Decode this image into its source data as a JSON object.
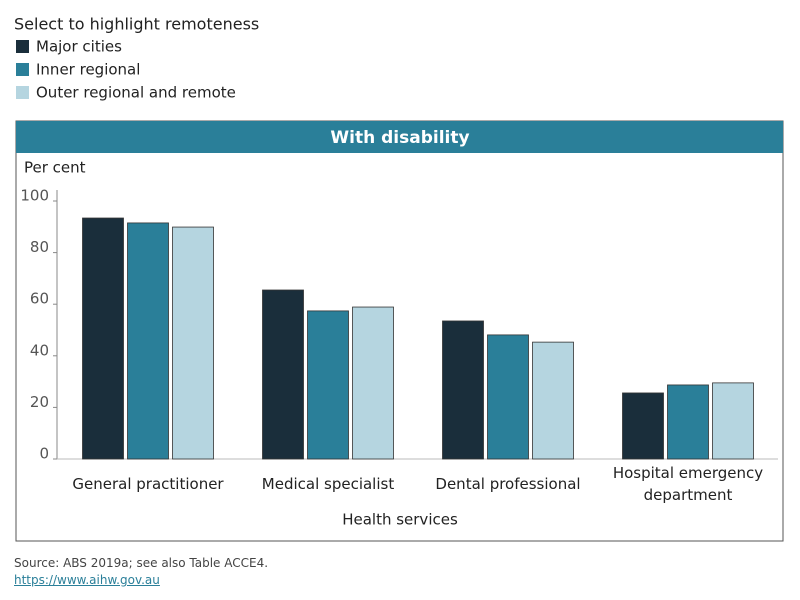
{
  "chart_data": {
    "type": "bar",
    "legend_title": "Select to highlight remoteness",
    "title": "With disability",
    "y_label": "Per cent",
    "x_label": "Health services",
    "categories": [
      "General practitioner",
      "Medical specialist",
      "Dental professional",
      "Hospital emergency department"
    ],
    "series": [
      {
        "name": "Major cities",
        "color": "#1a2e3b",
        "values": [
          93.4,
          65.5,
          53.5,
          25.6
        ]
      },
      {
        "name": "Inner regional",
        "color": "#2a7f99",
        "values": [
          91.5,
          57.4,
          48.1,
          28.7
        ]
      },
      {
        "name": "Outer regional and remote",
        "color": "#b5d5e0",
        "values": [
          89.9,
          58.9,
          45.3,
          29.5
        ]
      }
    ],
    "ylim": [
      0,
      100
    ],
    "yticks": [
      0,
      20,
      40,
      60,
      80,
      100
    ]
  },
  "footer": {
    "source": "Source: ABS 2019a; see also Table ACCE4.",
    "link": "https://www.aihw.gov.au"
  }
}
